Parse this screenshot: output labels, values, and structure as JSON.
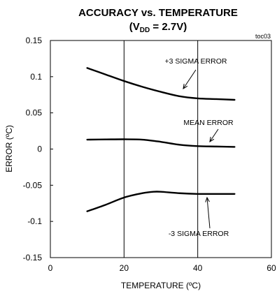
{
  "chart_data": {
    "type": "line",
    "title": "ACCURACY vs. TEMPERATURE",
    "subtitle": {
      "prefix": "(V",
      "subscript": "DD",
      "suffix": " = 2.7V)"
    },
    "corner_label": "toc03",
    "xlabel": "TEMPERATURE (ºC)",
    "ylabel": "ERROR (ºC)",
    "xlim": [
      0,
      60
    ],
    "ylim": [
      -0.15,
      0.15
    ],
    "x_ticks": [
      0,
      20,
      40,
      60
    ],
    "x_tick_labels": [
      "0",
      "20",
      "40",
      "60"
    ],
    "y_ticks": [
      0.15,
      0.1,
      0.05,
      0,
      -0.05,
      -0.1,
      -0.15
    ],
    "y_tick_labels": [
      "0.15",
      "0.1",
      "0.05",
      "0",
      "-0.05",
      "-0.1",
      "-0.15"
    ],
    "grid": {
      "x": [
        20,
        40
      ],
      "y": []
    },
    "series": [
      {
        "name": "+3 SIGMA ERROR",
        "x": [
          10,
          15,
          20,
          25,
          30,
          35,
          40,
          45,
          50
        ],
        "y": [
          0.112,
          0.103,
          0.094,
          0.086,
          0.079,
          0.073,
          0.07,
          0.069,
          0.068
        ]
      },
      {
        "name": "MEAN ERROR",
        "x": [
          10,
          15,
          20,
          25,
          30,
          35,
          40,
          45,
          50
        ],
        "y": [
          0.013,
          0.0133,
          0.0135,
          0.013,
          0.01,
          0.006,
          0.004,
          0.0035,
          0.003
        ]
      },
      {
        "name": "-3 SIGMA ERROR",
        "x": [
          10,
          15,
          20,
          25,
          28,
          30,
          35,
          40,
          45,
          50
        ],
        "y": [
          -0.086,
          -0.077,
          -0.067,
          -0.061,
          -0.059,
          -0.059,
          -0.061,
          -0.062,
          -0.062,
          -0.062
        ]
      }
    ],
    "annotations": [
      {
        "text": "+3 SIGMA ERROR",
        "series": 0,
        "x": 35.5,
        "y": 0.077
      },
      {
        "text": "MEAN ERROR",
        "series": 1,
        "x": 42.5,
        "y": 0.004
      },
      {
        "text": "-3 SIGMA ERROR",
        "series": 2,
        "x": 42,
        "y": -0.063
      }
    ]
  }
}
